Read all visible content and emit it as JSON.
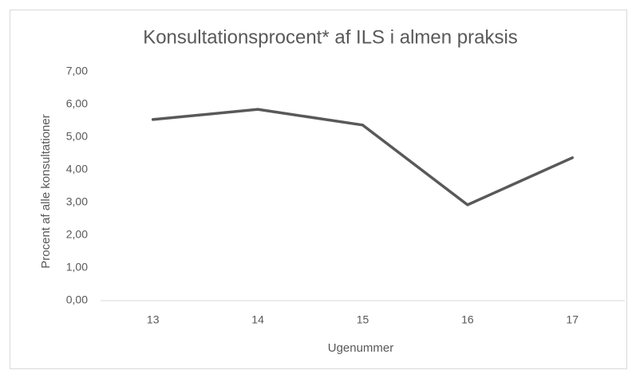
{
  "chart_data": {
    "type": "line",
    "title": "Konsultationsprocent* af ILS i almen praksis",
    "x_label": "Ugenummer",
    "y_label": "Procent af alle konsultationer",
    "categories": [
      "13",
      "14",
      "15",
      "16",
      "17"
    ],
    "values": [
      5.54,
      5.85,
      5.37,
      2.93,
      4.37
    ],
    "color": "#595959",
    "ylim": [
      0,
      7
    ],
    "yticks": [
      {
        "value": 0,
        "label": "0,00"
      },
      {
        "value": 1,
        "label": "1,00"
      },
      {
        "value": 2,
        "label": "2,00"
      },
      {
        "value": 3,
        "label": "3,00"
      },
      {
        "value": 4,
        "label": "4,00"
      },
      {
        "value": 5,
        "label": "5,00"
      },
      {
        "value": 6,
        "label": "6,00"
      },
      {
        "value": 7,
        "label": "7,00"
      }
    ],
    "grid": false
  }
}
